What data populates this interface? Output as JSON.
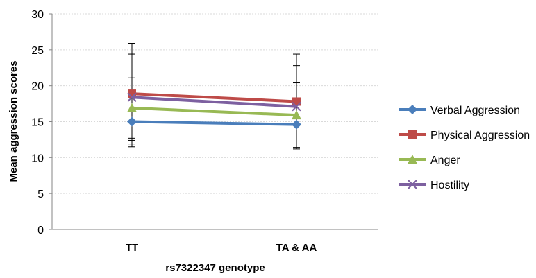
{
  "chart_data": {
    "type": "line",
    "title": "",
    "xlabel": "rs7322347 genotype",
    "ylabel": "Mean aggression scores",
    "categories": [
      "TT",
      "TA & AA"
    ],
    "ylim": [
      0,
      30
    ],
    "yticks": [
      0,
      5,
      10,
      15,
      20,
      25,
      30
    ],
    "grid": "horizontal dashed",
    "legend": "right",
    "series": [
      {
        "name": "Verbal Aggression",
        "values": [
          15.0,
          14.6
        ],
        "error": [
          3.5,
          3.2
        ],
        "color": "#4a7ebb",
        "marker": "diamond"
      },
      {
        "name": "Physical Aggression",
        "values": [
          18.9,
          17.8
        ],
        "error": [
          7.0,
          6.6
        ],
        "color": "#be4b48",
        "marker": "square"
      },
      {
        "name": "Anger",
        "values": [
          16.9,
          15.9
        ],
        "error": [
          4.2,
          4.5
        ],
        "color": "#98b954",
        "marker": "triangle"
      },
      {
        "name": "Hostility",
        "values": [
          18.4,
          17.1
        ],
        "error": [
          6.0,
          5.7
        ],
        "color": "#7d60a0",
        "marker": "x"
      }
    ]
  }
}
